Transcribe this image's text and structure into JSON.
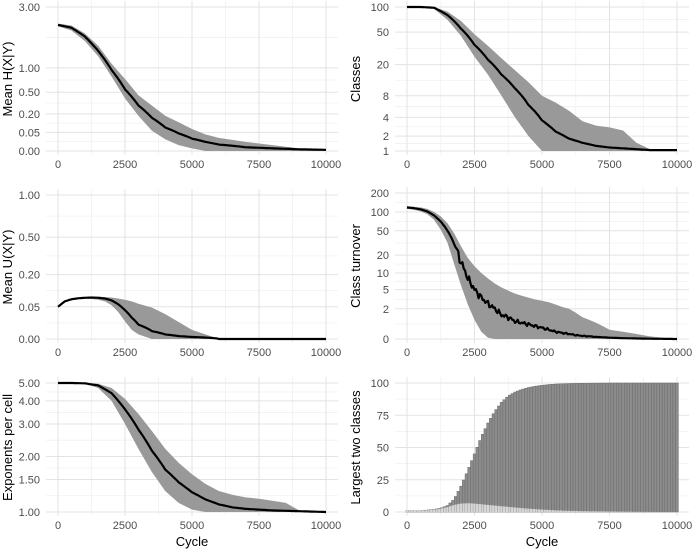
{
  "chart_data": [
    {
      "id": "p1",
      "type": "area",
      "ylabel": "Mean H(X|Y)",
      "xlabel": "",
      "scale": "sqrt",
      "xlim": [
        0,
        10000
      ],
      "ylim": [
        0,
        3.0
      ],
      "yticks": [
        0,
        0.05,
        0.2,
        0.5,
        1.0,
        3.0
      ],
      "ytick_labels": [
        "0.00",
        "0.05",
        "0.20",
        "0.50",
        "1.00",
        "3.00"
      ],
      "xticks": [
        0,
        2500,
        5000,
        7500,
        10000
      ],
      "xtick_labels": [
        "0",
        "2500",
        "5000",
        "7500",
        "10000"
      ],
      "grid": true,
      "series": [
        {
          "role": "mean",
          "x": [
            0,
            500,
            1000,
            1500,
            2000,
            2500,
            3000,
            3500,
            4000,
            4500,
            5000,
            5500,
            6000,
            7000,
            8000,
            9000,
            10000
          ],
          "values": [
            2.3,
            2.2,
            1.9,
            1.45,
            0.95,
            0.55,
            0.3,
            0.16,
            0.08,
            0.045,
            0.022,
            0.012,
            0.006,
            0.002,
            0.001,
            0.0004,
            0.0002
          ]
        },
        {
          "role": "band_upper",
          "x": [
            0,
            500,
            1000,
            1500,
            2000,
            2500,
            3000,
            3500,
            4000,
            4500,
            5000,
            5500,
            6000,
            7000,
            8000,
            9000,
            10000
          ],
          "values": [
            2.35,
            2.28,
            2.0,
            1.6,
            1.1,
            0.75,
            0.45,
            0.3,
            0.18,
            0.12,
            0.07,
            0.04,
            0.025,
            0.012,
            0.005,
            0.001,
            0.0005
          ]
        },
        {
          "role": "band_lower",
          "x": [
            0,
            500,
            1000,
            1500,
            2000,
            2500,
            3000,
            3500,
            4000,
            4500,
            5000,
            5500,
            6000,
            7000,
            8000,
            9000,
            10000
          ],
          "values": [
            2.25,
            2.1,
            1.75,
            1.3,
            0.8,
            0.4,
            0.18,
            0.06,
            0.02,
            0.005,
            0.001,
            0,
            0,
            0,
            0,
            0,
            0
          ]
        }
      ]
    },
    {
      "id": "p2",
      "type": "area",
      "ylabel": "Classes",
      "xlabel": "",
      "scale": "log1p",
      "xlim": [
        0,
        10000
      ],
      "ylim": [
        1,
        100
      ],
      "yticks": [
        1,
        2,
        4,
        8,
        20,
        50,
        100
      ],
      "ytick_labels": [
        "1",
        "2",
        "4",
        "8",
        "20",
        "50",
        "100"
      ],
      "xticks": [
        0,
        2500,
        5000,
        7500,
        10000
      ],
      "xtick_labels": [
        "0",
        "2500",
        "5000",
        "7500",
        "10000"
      ],
      "grid": true,
      "series": [
        {
          "role": "mean",
          "x": [
            0,
            500,
            1000,
            1500,
            2000,
            2500,
            3000,
            3500,
            4000,
            4500,
            5000,
            5500,
            6000,
            6500,
            7000,
            7500,
            8000,
            8500,
            9000,
            9500,
            10000
          ],
          "values": [
            100,
            100,
            98,
            80,
            55,
            35,
            23,
            15,
            10,
            6,
            3.6,
            2.4,
            1.8,
            1.5,
            1.3,
            1.2,
            1.15,
            1.1,
            1.05,
            1.05,
            1.05
          ]
        },
        {
          "role": "band_upper",
          "x": [
            0,
            500,
            1000,
            1500,
            2000,
            2500,
            3000,
            3500,
            4000,
            4500,
            5000,
            5500,
            6000,
            6500,
            7000,
            7500,
            8000,
            8500,
            9000,
            9500,
            10000
          ],
          "values": [
            100,
            100,
            100,
            88,
            68,
            47,
            34,
            24,
            17,
            12,
            8,
            6.5,
            5,
            3.5,
            3,
            2.8,
            2.5,
            1.5,
            1.1,
            1.1,
            1.1
          ]
        },
        {
          "role": "band_lower",
          "x": [
            0,
            500,
            1000,
            1500,
            2000,
            2500,
            3000,
            3500,
            4000,
            4500,
            5000,
            5500,
            6000,
            6500,
            7000,
            7500,
            8000,
            8500,
            9000,
            9500,
            10000
          ],
          "values": [
            100,
            100,
            95,
            70,
            45,
            25,
            15,
            8,
            4,
            2,
            1,
            1,
            1,
            1,
            1,
            1,
            1,
            1,
            1,
            1,
            1
          ]
        }
      ]
    },
    {
      "id": "p3",
      "type": "area",
      "ylabel": "Mean U(X|Y)",
      "xlabel": "",
      "scale": "sqrt",
      "xlim": [
        0,
        10000
      ],
      "ylim": [
        0,
        1.0
      ],
      "yticks": [
        0,
        0.05,
        0.2,
        0.5,
        1.0
      ],
      "ytick_labels": [
        "0.00",
        "0.05",
        "0.20",
        "0.50",
        "1.00"
      ],
      "xticks": [
        0,
        2500,
        5000,
        7500,
        10000
      ],
      "xtick_labels": [
        "0",
        "2500",
        "5000",
        "7500",
        "10000"
      ],
      "grid": true,
      "series": [
        {
          "role": "mean",
          "x": [
            0,
            250,
            500,
            750,
            1000,
            1250,
            1500,
            1750,
            2000,
            2250,
            2500,
            2750,
            3000,
            3500,
            4000,
            4500,
            5000,
            6000,
            10000
          ],
          "values": [
            0.05,
            0.068,
            0.076,
            0.08,
            0.082,
            0.083,
            0.082,
            0.079,
            0.072,
            0.058,
            0.04,
            0.022,
            0.01,
            0.003,
            0.001,
            0.0004,
            0.0002,
            0,
            0
          ]
        },
        {
          "role": "band_upper",
          "x": [
            0,
            250,
            500,
            750,
            1000,
            1250,
            1500,
            1750,
            2000,
            2250,
            2500,
            2750,
            3000,
            3500,
            4000,
            4500,
            5000,
            5500,
            6000,
            10000
          ],
          "values": [
            0.052,
            0.07,
            0.078,
            0.082,
            0.084,
            0.086,
            0.086,
            0.085,
            0.083,
            0.079,
            0.074,
            0.068,
            0.06,
            0.048,
            0.03,
            0.014,
            0.004,
            0.001,
            0,
            0
          ]
        },
        {
          "role": "band_lower",
          "x": [
            0,
            250,
            500,
            750,
            1000,
            1250,
            1500,
            1750,
            2000,
            2250,
            2500,
            2750,
            3000,
            3500,
            10000
          ],
          "values": [
            0.048,
            0.066,
            0.074,
            0.077,
            0.078,
            0.077,
            0.074,
            0.068,
            0.055,
            0.035,
            0.015,
            0.004,
            0.001,
            0,
            0
          ]
        }
      ]
    },
    {
      "id": "p4",
      "type": "area",
      "ylabel": "Class turnover",
      "xlabel": "",
      "scale": "log1p",
      "xlim": [
        0,
        10000
      ],
      "ylim": [
        0,
        200
      ],
      "yticks": [
        0,
        2,
        5,
        10,
        20,
        50,
        100,
        200
      ],
      "ytick_labels": [
        "0",
        "2",
        "5",
        "10",
        "20",
        "50",
        "100",
        "200"
      ],
      "xticks": [
        0,
        2500,
        5000,
        7500,
        10000
      ],
      "xtick_labels": [
        "0",
        "2500",
        "5000",
        "7500",
        "10000"
      ],
      "grid": true,
      "series": [
        {
          "role": "mean",
          "x": [
            0,
            250,
            500,
            750,
            1000,
            1250,
            1500,
            1750,
            2000,
            2250,
            2500,
            2750,
            3000,
            3250,
            3500,
            3750,
            4000,
            4250,
            4500,
            4750,
            5000,
            5250,
            5500,
            5750,
            6000,
            6250,
            6500,
            6750,
            7000,
            7500,
            8000,
            8500,
            9000,
            9500,
            10000
          ],
          "values": [
            118,
            115,
            110,
            102,
            88,
            70,
            50,
            30,
            15,
            8,
            5,
            3.5,
            2.6,
            2.0,
            1.4,
            1.2,
            0.9,
            0.8,
            0.7,
            0.6,
            0.5,
            0.4,
            0.3,
            0.25,
            0.2,
            0.15,
            0.12,
            0.1,
            0.08,
            0.05,
            0.03,
            0.02,
            0.01,
            0.005,
            0
          ]
        },
        {
          "role": "band_upper",
          "x": [
            0,
            250,
            500,
            750,
            1000,
            1250,
            1500,
            1750,
            2000,
            2250,
            2500,
            2750,
            3000,
            3250,
            3500,
            3750,
            4000,
            4250,
            4500,
            4750,
            5000,
            5250,
            5500,
            5750,
            6000,
            6250,
            6500,
            6750,
            7000,
            7250,
            7500,
            8000,
            8500,
            9000,
            9500,
            10000
          ],
          "values": [
            124,
            121,
            118,
            112,
            100,
            85,
            66,
            45,
            28,
            18,
            13,
            10,
            8,
            6.5,
            5.5,
            4.8,
            4.2,
            3.8,
            3.5,
            3.2,
            3.0,
            2.8,
            2.5,
            2.2,
            2.0,
            1.6,
            1.2,
            1.0,
            0.8,
            0.6,
            0.4,
            0.3,
            0.2,
            0.1,
            0.05,
            0
          ]
        },
        {
          "role": "band_lower",
          "x": [
            0,
            250,
            500,
            750,
            1000,
            1250,
            1500,
            1750,
            2000,
            2250,
            2500,
            2750,
            3000,
            3250,
            10000
          ],
          "values": [
            112,
            108,
            102,
            92,
            75,
            52,
            32,
            14,
            6,
            2.5,
            1,
            0.3,
            0.05,
            0,
            0
          ]
        }
      ]
    },
    {
      "id": "p5",
      "type": "area",
      "ylabel": "Exponents per cell",
      "xlabel": "Cycle",
      "scale": "log",
      "xlim": [
        0,
        10000
      ],
      "ylim": [
        1.0,
        5.0
      ],
      "yticks": [
        1.0,
        1.5,
        2.0,
        3.0,
        4.0,
        5.0
      ],
      "ytick_labels": [
        "1.00",
        "1.50",
        "2.00",
        "3.00",
        "4.00",
        "5.00"
      ],
      "xticks": [
        0,
        2500,
        5000,
        7500,
        10000
      ],
      "xtick_labels": [
        "0",
        "2500",
        "5000",
        "7500",
        "10000"
      ],
      "grid": true,
      "series": [
        {
          "role": "mean",
          "x": [
            0,
            500,
            1000,
            1500,
            2000,
            2500,
            3000,
            3500,
            4000,
            4500,
            5000,
            5500,
            6000,
            6500,
            7000,
            7500,
            8000,
            9000,
            10000
          ],
          "values": [
            5,
            5,
            4.98,
            4.85,
            4.4,
            3.6,
            2.8,
            2.15,
            1.7,
            1.45,
            1.28,
            1.17,
            1.1,
            1.06,
            1.04,
            1.03,
            1.02,
            1.01,
            1.0
          ]
        },
        {
          "role": "band_upper",
          "x": [
            0,
            500,
            1000,
            1500,
            2000,
            2500,
            3000,
            3500,
            4000,
            4500,
            5000,
            5500,
            6000,
            6500,
            7000,
            7500,
            8000,
            8500,
            9000,
            9500,
            10000
          ],
          "values": [
            5,
            5,
            5,
            4.95,
            4.7,
            4.1,
            3.4,
            2.75,
            2.2,
            1.85,
            1.6,
            1.42,
            1.3,
            1.24,
            1.2,
            1.18,
            1.15,
            1.12,
            1.02,
            1.0,
            1.0
          ]
        },
        {
          "role": "band_lower",
          "x": [
            0,
            500,
            1000,
            1500,
            2000,
            2500,
            3000,
            3500,
            4000,
            4500,
            5000,
            5500,
            6000,
            10000
          ],
          "values": [
            5,
            5,
            4.95,
            4.7,
            4.0,
            3.0,
            2.2,
            1.65,
            1.3,
            1.12,
            1.03,
            1.0,
            1.0,
            1.0
          ]
        }
      ]
    },
    {
      "id": "p6",
      "type": "bar",
      "ylabel": "Largest two classes",
      "xlabel": "Cycle",
      "scale": "linear",
      "xlim": [
        0,
        10000
      ],
      "ylim": [
        0,
        100
      ],
      "yticks": [
        0,
        25,
        50,
        75,
        100
      ],
      "ytick_labels": [
        "0",
        "25",
        "50",
        "75",
        "100"
      ],
      "xticks": [
        0,
        2500,
        5000,
        7500,
        10000
      ],
      "xtick_labels": [
        "0",
        "2500",
        "5000",
        "7500",
        "10000"
      ],
      "grid": true,
      "bar_width": 100,
      "series": [
        {
          "role": "largest",
          "x": [
            0,
            500,
            1000,
            1250,
            1500,
            1750,
            2000,
            2250,
            2500,
            2750,
            3000,
            3250,
            3500,
            3750,
            4000,
            4250,
            4500,
            4750,
            5000,
            5250,
            5500,
            6000,
            6500,
            7000,
            7500,
            8000,
            10000
          ],
          "values": [
            1,
            1,
            2,
            3,
            5,
            10,
            20,
            32,
            45,
            58,
            69,
            78,
            85,
            90,
            93,
            95,
            96.5,
            97.5,
            98.2,
            98.8,
            99.2,
            99.6,
            99.8,
            99.9,
            100,
            100,
            100
          ]
        },
        {
          "role": "second",
          "x": [
            0,
            500,
            1000,
            1250,
            1500,
            1750,
            2000,
            2250,
            2500,
            3000,
            3500,
            4000,
            4500,
            5000,
            5500,
            6000,
            7000,
            8000,
            9000,
            10000
          ],
          "values": [
            1,
            1,
            1.8,
            2.6,
            3.8,
            5.5,
            6.5,
            6.8,
            6.5,
            5.5,
            4.5,
            3.5,
            2.6,
            1.9,
            1.3,
            0.9,
            0.5,
            0.3,
            0.1,
            0.05
          ]
        }
      ]
    }
  ]
}
